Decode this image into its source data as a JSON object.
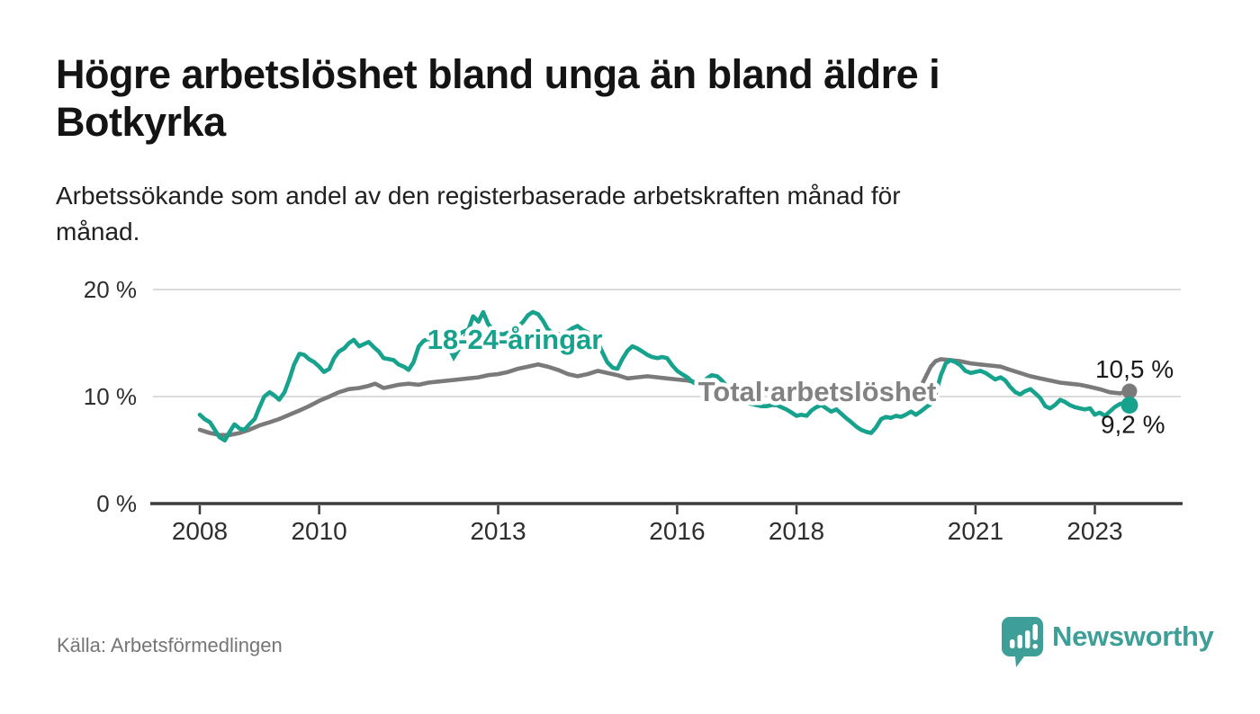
{
  "header": {
    "title_lines": [
      "Högre arbetslöshet bland unga än bland äldre i",
      "Botkyrka"
    ],
    "subtitle_lines": [
      "Arbetssökande som andel av den registerbaserade arbetskraften månad för",
      "månad."
    ]
  },
  "footer": {
    "source": "Källa: Arbetsförmedlingen",
    "brand": "Newsworthy"
  },
  "colors": {
    "youth_teal": "#17a28e",
    "total_gray": "#7a7a7a",
    "total_label_gray": "#828282",
    "axis_dark": "#3c3c3c",
    "grid_light": "#dbdbdb",
    "tick_text": "#2e2e2e",
    "end_label_text": "#1a1a1a",
    "logo_teal": "#3d9f97",
    "halo_white": "#ffffff"
  },
  "chart_data": {
    "type": "line",
    "title": "Högre arbetslöshet bland unga än bland äldre i Botkyrka",
    "subtitle": "Arbetssökande som andel av den registerbaserade arbetskraften månad för månad.",
    "unit": "%",
    "grid": "horizontal",
    "legend_position": "inline-labels",
    "ylim": [
      0,
      21
    ],
    "x_range": [
      2008.0,
      2023.58
    ],
    "y_ticks": [
      {
        "label": "20 %",
        "value": 20
      },
      {
        "label": "10 %",
        "value": 10
      },
      {
        "label": "0 %",
        "value": 0
      }
    ],
    "x_ticks": [
      {
        "label": "2008",
        "year": 2008
      },
      {
        "label": "2010",
        "year": 2010
      },
      {
        "label": "2013",
        "year": 2013
      },
      {
        "label": "2016",
        "year": 2016
      },
      {
        "label": "2018",
        "year": 2018
      },
      {
        "label": "2021",
        "year": 2021
      },
      {
        "label": "2023",
        "year": 2023
      }
    ],
    "series": [
      {
        "name": "Total arbetslöshet",
        "color": "#7a7a7a",
        "label_color": "#828282",
        "end_label": "10,5 %",
        "end_value": 10.5,
        "points": [
          [
            2008.0,
            6.9
          ],
          [
            2008.17,
            6.6
          ],
          [
            2008.33,
            6.4
          ],
          [
            2008.5,
            6.4
          ],
          [
            2008.67,
            6.6
          ],
          [
            2008.83,
            6.9
          ],
          [
            2009.0,
            7.3
          ],
          [
            2009.17,
            7.6
          ],
          [
            2009.33,
            7.9
          ],
          [
            2009.5,
            8.3
          ],
          [
            2009.67,
            8.7
          ],
          [
            2009.83,
            9.1
          ],
          [
            2010.0,
            9.6
          ],
          [
            2010.17,
            10.0
          ],
          [
            2010.33,
            10.4
          ],
          [
            2010.5,
            10.7
          ],
          [
            2010.67,
            10.8
          ],
          [
            2010.83,
            11.0
          ],
          [
            2010.94,
            11.2
          ],
          [
            2011.08,
            10.8
          ],
          [
            2011.17,
            10.9
          ],
          [
            2011.33,
            11.1
          ],
          [
            2011.5,
            11.2
          ],
          [
            2011.67,
            11.1
          ],
          [
            2011.83,
            11.3
          ],
          [
            2012.0,
            11.4
          ],
          [
            2012.17,
            11.5
          ],
          [
            2012.33,
            11.6
          ],
          [
            2012.5,
            11.7
          ],
          [
            2012.67,
            11.8
          ],
          [
            2012.83,
            12.0
          ],
          [
            2013.0,
            12.1
          ],
          [
            2013.17,
            12.3
          ],
          [
            2013.33,
            12.6
          ],
          [
            2013.5,
            12.8
          ],
          [
            2013.67,
            13.0
          ],
          [
            2013.83,
            12.8
          ],
          [
            2014.0,
            12.5
          ],
          [
            2014.17,
            12.1
          ],
          [
            2014.33,
            11.9
          ],
          [
            2014.5,
            12.1
          ],
          [
            2014.67,
            12.4
          ],
          [
            2014.83,
            12.2
          ],
          [
            2015.0,
            12.0
          ],
          [
            2015.17,
            11.7
          ],
          [
            2015.33,
            11.8
          ],
          [
            2015.5,
            11.9
          ],
          [
            2015.67,
            11.8
          ],
          [
            2015.83,
            11.7
          ],
          [
            2016.0,
            11.6
          ],
          [
            2016.17,
            11.5
          ],
          [
            2016.33,
            11.3
          ],
          [
            2016.5,
            11.1
          ],
          [
            2016.75,
            11.0
          ],
          [
            2017.0,
            10.9
          ],
          [
            2017.25,
            10.8
          ],
          [
            2017.5,
            10.7
          ],
          [
            2017.75,
            10.6
          ],
          [
            2018.0,
            10.5
          ],
          [
            2018.25,
            10.5
          ],
          [
            2018.5,
            10.4
          ],
          [
            2018.75,
            10.4
          ],
          [
            2019.0,
            10.3
          ],
          [
            2019.25,
            10.3
          ],
          [
            2019.5,
            10.2
          ],
          [
            2019.75,
            10.3
          ],
          [
            2019.92,
            10.4
          ],
          [
            2020.08,
            10.9
          ],
          [
            2020.17,
            11.9
          ],
          [
            2020.25,
            12.8
          ],
          [
            2020.33,
            13.3
          ],
          [
            2020.42,
            13.5
          ],
          [
            2020.58,
            13.4
          ],
          [
            2020.75,
            13.3
          ],
          [
            2020.92,
            13.1
          ],
          [
            2021.08,
            13.0
          ],
          [
            2021.25,
            12.9
          ],
          [
            2021.42,
            12.8
          ],
          [
            2021.58,
            12.5
          ],
          [
            2021.75,
            12.2
          ],
          [
            2021.92,
            11.9
          ],
          [
            2022.08,
            11.7
          ],
          [
            2022.25,
            11.5
          ],
          [
            2022.42,
            11.3
          ],
          [
            2022.58,
            11.2
          ],
          [
            2022.75,
            11.1
          ],
          [
            2022.92,
            10.9
          ],
          [
            2023.08,
            10.7
          ],
          [
            2023.25,
            10.4
          ],
          [
            2023.42,
            10.3
          ],
          [
            2023.58,
            10.5
          ]
        ]
      },
      {
        "name": "18-24-åringar",
        "color": "#17a28e",
        "label_color": "#17a28e",
        "end_label": "9,2 %",
        "end_value": 9.2,
        "points": [
          [
            2008.0,
            8.3
          ],
          [
            2008.08,
            7.9
          ],
          [
            2008.17,
            7.6
          ],
          [
            2008.25,
            6.9
          ],
          [
            2008.33,
            6.2
          ],
          [
            2008.42,
            5.9
          ],
          [
            2008.5,
            6.7
          ],
          [
            2008.58,
            7.4
          ],
          [
            2008.67,
            7.0
          ],
          [
            2008.75,
            6.9
          ],
          [
            2008.83,
            7.4
          ],
          [
            2008.92,
            7.9
          ],
          [
            2009.0,
            9.0
          ],
          [
            2009.08,
            10.0
          ],
          [
            2009.17,
            10.4
          ],
          [
            2009.25,
            10.1
          ],
          [
            2009.33,
            9.7
          ],
          [
            2009.42,
            10.4
          ],
          [
            2009.5,
            11.6
          ],
          [
            2009.58,
            13.0
          ],
          [
            2009.67,
            14.0
          ],
          [
            2009.75,
            13.9
          ],
          [
            2009.83,
            13.5
          ],
          [
            2009.92,
            13.2
          ],
          [
            2010.0,
            12.8
          ],
          [
            2010.08,
            12.3
          ],
          [
            2010.17,
            12.6
          ],
          [
            2010.25,
            13.6
          ],
          [
            2010.33,
            14.2
          ],
          [
            2010.42,
            14.5
          ],
          [
            2010.5,
            15.0
          ],
          [
            2010.58,
            15.3
          ],
          [
            2010.67,
            14.7
          ],
          [
            2010.75,
            14.9
          ],
          [
            2010.83,
            15.1
          ],
          [
            2010.92,
            14.6
          ],
          [
            2011.0,
            14.2
          ],
          [
            2011.08,
            13.6
          ],
          [
            2011.17,
            13.5
          ],
          [
            2011.25,
            13.4
          ],
          [
            2011.33,
            13.0
          ],
          [
            2011.42,
            12.8
          ],
          [
            2011.5,
            12.5
          ],
          [
            2011.58,
            13.2
          ],
          [
            2011.67,
            14.7
          ],
          [
            2011.75,
            15.2
          ],
          [
            2011.83,
            15.4
          ],
          [
            2011.92,
            15.1
          ],
          [
            2012.0,
            15.0
          ],
          [
            2012.08,
            15.2
          ],
          [
            2012.17,
            15.4
          ],
          [
            2012.25,
            15.3
          ],
          [
            2012.33,
            15.1
          ],
          [
            2012.42,
            15.3
          ],
          [
            2012.5,
            16.2
          ],
          [
            2012.58,
            17.5
          ],
          [
            2012.67,
            17.0
          ],
          [
            2012.75,
            17.9
          ],
          [
            2012.83,
            16.8
          ],
          [
            2012.92,
            16.2
          ],
          [
            2013.0,
            15.9
          ],
          [
            2013.08,
            15.8
          ],
          [
            2013.17,
            16.0
          ],
          [
            2013.25,
            16.2
          ],
          [
            2013.33,
            16.5
          ],
          [
            2013.42,
            17.0
          ],
          [
            2013.5,
            17.6
          ],
          [
            2013.58,
            17.9
          ],
          [
            2013.67,
            17.7
          ],
          [
            2013.75,
            17.1
          ],
          [
            2013.83,
            16.3
          ],
          [
            2013.92,
            15.9
          ],
          [
            2014.0,
            15.8
          ],
          [
            2014.08,
            15.9
          ],
          [
            2014.17,
            16.1
          ],
          [
            2014.25,
            16.4
          ],
          [
            2014.33,
            16.6
          ],
          [
            2014.42,
            16.2
          ],
          [
            2014.5,
            16.0
          ],
          [
            2014.58,
            15.6
          ],
          [
            2014.67,
            15.1
          ],
          [
            2014.75,
            14.1
          ],
          [
            2014.83,
            13.2
          ],
          [
            2014.92,
            12.7
          ],
          [
            2015.0,
            12.6
          ],
          [
            2015.08,
            13.5
          ],
          [
            2015.17,
            14.3
          ],
          [
            2015.25,
            14.7
          ],
          [
            2015.33,
            14.5
          ],
          [
            2015.42,
            14.2
          ],
          [
            2015.5,
            13.9
          ],
          [
            2015.58,
            13.7
          ],
          [
            2015.67,
            13.6
          ],
          [
            2015.75,
            13.7
          ],
          [
            2015.83,
            13.6
          ],
          [
            2015.92,
            12.9
          ],
          [
            2016.0,
            12.4
          ],
          [
            2016.08,
            12.1
          ],
          [
            2016.17,
            11.8
          ],
          [
            2016.25,
            11.4
          ],
          [
            2016.33,
            11.1
          ],
          [
            2016.42,
            11.3
          ],
          [
            2016.5,
            11.7
          ],
          [
            2016.58,
            12.0
          ],
          [
            2016.67,
            11.9
          ],
          [
            2016.75,
            11.5
          ],
          [
            2016.83,
            11.0
          ],
          [
            2016.92,
            10.5
          ],
          [
            2017.0,
            10.1
          ],
          [
            2017.08,
            9.8
          ],
          [
            2017.17,
            9.5
          ],
          [
            2017.25,
            9.3
          ],
          [
            2017.33,
            9.2
          ],
          [
            2017.42,
            9.1
          ],
          [
            2017.5,
            9.1
          ],
          [
            2017.58,
            9.2
          ],
          [
            2017.67,
            9.2
          ],
          [
            2017.75,
            9.0
          ],
          [
            2017.83,
            8.8
          ],
          [
            2017.92,
            8.5
          ],
          [
            2018.0,
            8.2
          ],
          [
            2018.08,
            8.3
          ],
          [
            2018.17,
            8.2
          ],
          [
            2018.25,
            8.7
          ],
          [
            2018.33,
            9.0
          ],
          [
            2018.42,
            9.2
          ],
          [
            2018.5,
            8.9
          ],
          [
            2018.58,
            8.6
          ],
          [
            2018.67,
            8.8
          ],
          [
            2018.75,
            8.4
          ],
          [
            2018.83,
            8.0
          ],
          [
            2018.92,
            7.6
          ],
          [
            2019.0,
            7.2
          ],
          [
            2019.08,
            6.9
          ],
          [
            2019.17,
            6.7
          ],
          [
            2019.25,
            6.6
          ],
          [
            2019.33,
            7.1
          ],
          [
            2019.42,
            7.9
          ],
          [
            2019.5,
            8.1
          ],
          [
            2019.58,
            8.0
          ],
          [
            2019.67,
            8.2
          ],
          [
            2019.75,
            8.1
          ],
          [
            2019.83,
            8.3
          ],
          [
            2019.92,
            8.6
          ],
          [
            2020.0,
            8.3
          ],
          [
            2020.08,
            8.6
          ],
          [
            2020.17,
            9.0
          ],
          [
            2020.25,
            9.3
          ],
          [
            2020.33,
            10.2
          ],
          [
            2020.42,
            12.0
          ],
          [
            2020.5,
            13.1
          ],
          [
            2020.58,
            13.4
          ],
          [
            2020.67,
            13.2
          ],
          [
            2020.75,
            12.9
          ],
          [
            2020.83,
            12.4
          ],
          [
            2020.92,
            12.2
          ],
          [
            2021.0,
            12.3
          ],
          [
            2021.08,
            12.4
          ],
          [
            2021.17,
            12.2
          ],
          [
            2021.25,
            11.9
          ],
          [
            2021.33,
            11.6
          ],
          [
            2021.42,
            11.8
          ],
          [
            2021.5,
            11.5
          ],
          [
            2021.58,
            10.9
          ],
          [
            2021.67,
            10.4
          ],
          [
            2021.75,
            10.2
          ],
          [
            2021.83,
            10.5
          ],
          [
            2021.92,
            10.7
          ],
          [
            2022.0,
            10.3
          ],
          [
            2022.08,
            9.9
          ],
          [
            2022.17,
            9.1
          ],
          [
            2022.25,
            8.9
          ],
          [
            2022.33,
            9.2
          ],
          [
            2022.42,
            9.7
          ],
          [
            2022.5,
            9.5
          ],
          [
            2022.58,
            9.2
          ],
          [
            2022.67,
            9.0
          ],
          [
            2022.75,
            8.9
          ],
          [
            2022.83,
            8.8
          ],
          [
            2022.92,
            8.9
          ],
          [
            2023.0,
            8.3
          ],
          [
            2023.08,
            8.5
          ],
          [
            2023.17,
            8.2
          ],
          [
            2023.25,
            8.6
          ],
          [
            2023.33,
            9.0
          ],
          [
            2023.42,
            9.3
          ],
          [
            2023.5,
            9.4
          ],
          [
            2023.58,
            9.2
          ]
        ]
      }
    ],
    "source": "Källa: Arbetsförmedlingen"
  }
}
